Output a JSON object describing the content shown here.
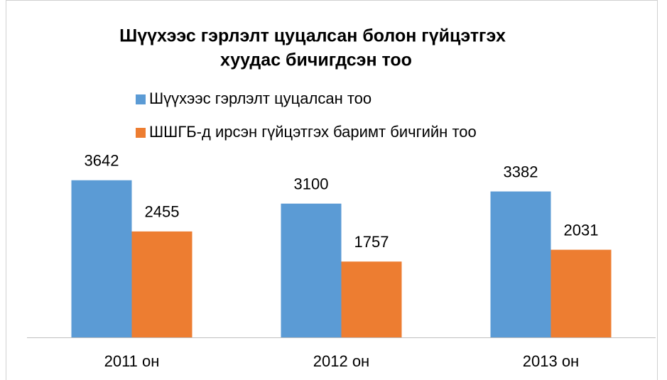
{
  "chart_data": {
    "type": "bar",
    "title": [
      "Шүүхээс гэрлэлт цуцалсан болон гүйцэтгэх",
      "хуудас бичигдсэн тоо"
    ],
    "categories": [
      "2011 он",
      "2012 он",
      "2013 он"
    ],
    "series": [
      {
        "name": "Шүүхээс гэрлэлт цуцалсан тоо",
        "color": "#5b9bd5",
        "values": [
          3642,
          3100,
          3382
        ]
      },
      {
        "name": "ШШГБ-д ирсэн гүйцэтгэх баримт бичгийн тоо",
        "color": "#ed7d31",
        "values": [
          2455,
          1757,
          2031
        ]
      }
    ],
    "ylim": [
      0,
      4000
    ]
  }
}
